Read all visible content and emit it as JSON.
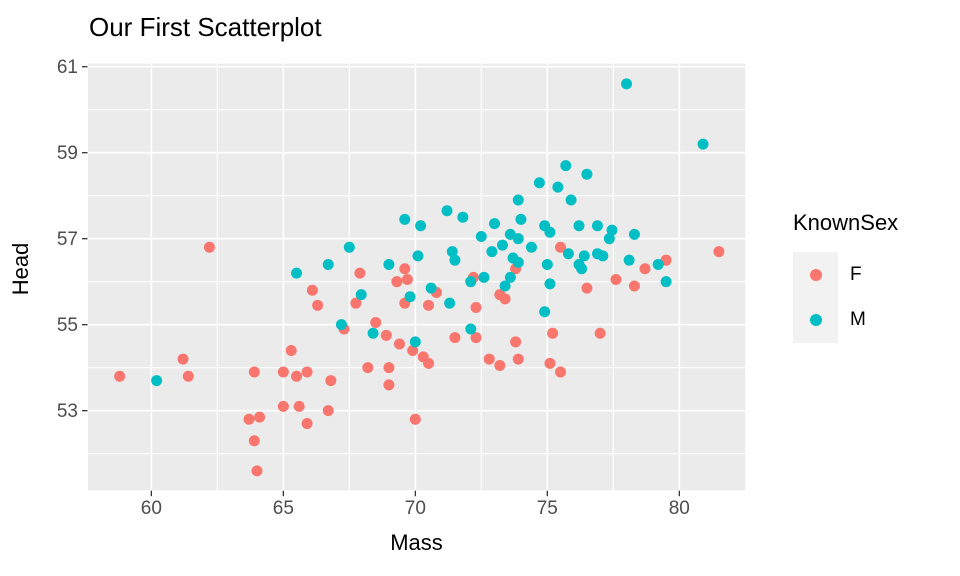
{
  "title": "Our First Scatterplot",
  "chart_data": {
    "type": "scatter",
    "title": "Our First Scatterplot",
    "xlabel": "Mass",
    "ylabel": "Head",
    "xlim": [
      57.6,
      82.5
    ],
    "ylim": [
      51.15,
      61.07
    ],
    "x_ticks": [
      "60",
      "65",
      "70",
      "75",
      "80"
    ],
    "y_ticks": [
      "53",
      "55",
      "57",
      "59",
      "61"
    ],
    "x_tick_values": [
      60,
      65,
      70,
      75,
      80
    ],
    "y_tick_values": [
      53,
      55,
      57,
      59,
      61
    ],
    "x_minor_ticks": [
      62.5,
      67.5,
      72.5,
      77.5
    ],
    "y_minor_ticks": [
      52,
      54,
      56,
      58,
      60
    ],
    "grid": true,
    "panel_bg": "#EBEBEB",
    "grid_color": "#FFFFFF",
    "tick_label_color": "#4D4D4D",
    "tick_mark_color": "#333333",
    "point_radius": 5.5,
    "legend": {
      "title": "KnownSex",
      "position": "right",
      "key_bg": "#F2F2F2",
      "entries": [
        {
          "label": "F",
          "color": "#F8766D"
        },
        {
          "label": "M",
          "color": "#00BFC4"
        }
      ]
    },
    "series": [
      {
        "name": "F",
        "color": "#F8766D",
        "points": [
          [
            58.8,
            53.8
          ],
          [
            61.2,
            54.2
          ],
          [
            61.4,
            53.8
          ],
          [
            62.2,
            56.8
          ],
          [
            63.7,
            52.8
          ],
          [
            63.9,
            53.9
          ],
          [
            63.9,
            52.3
          ],
          [
            64.0,
            51.6
          ],
          [
            64.1,
            52.85
          ],
          [
            65.0,
            53.9
          ],
          [
            65.0,
            53.1
          ],
          [
            65.3,
            54.4
          ],
          [
            65.5,
            53.8
          ],
          [
            65.6,
            53.1
          ],
          [
            65.9,
            53.9
          ],
          [
            65.9,
            52.7
          ],
          [
            66.1,
            55.8
          ],
          [
            66.3,
            55.45
          ],
          [
            66.7,
            53.0
          ],
          [
            66.8,
            53.7
          ],
          [
            67.3,
            54.9
          ],
          [
            67.75,
            55.5
          ],
          [
            67.9,
            56.2
          ],
          [
            68.2,
            54.0
          ],
          [
            68.5,
            55.05
          ],
          [
            68.9,
            54.75
          ],
          [
            69.0,
            54.0
          ],
          [
            69.0,
            53.6
          ],
          [
            69.3,
            56.0
          ],
          [
            69.4,
            54.55
          ],
          [
            69.6,
            56.3
          ],
          [
            69.7,
            56.05
          ],
          [
            69.6,
            55.5
          ],
          [
            69.9,
            54.4
          ],
          [
            70.0,
            52.8
          ],
          [
            70.3,
            54.25
          ],
          [
            70.5,
            55.45
          ],
          [
            70.5,
            54.1
          ],
          [
            70.8,
            55.75
          ],
          [
            71.5,
            54.7
          ],
          [
            72.2,
            56.1
          ],
          [
            72.3,
            55.4
          ],
          [
            72.3,
            54.7
          ],
          [
            72.8,
            54.2
          ],
          [
            73.2,
            55.7
          ],
          [
            73.2,
            54.05
          ],
          [
            73.4,
            55.6
          ],
          [
            73.8,
            56.3
          ],
          [
            73.8,
            54.6
          ],
          [
            73.9,
            54.2
          ],
          [
            75.1,
            54.1
          ],
          [
            75.2,
            54.8
          ],
          [
            75.5,
            53.9
          ],
          [
            75.5,
            56.8
          ],
          [
            76.5,
            55.85
          ],
          [
            77.0,
            54.8
          ],
          [
            77.6,
            56.05
          ],
          [
            78.3,
            55.9
          ],
          [
            78.7,
            56.3
          ],
          [
            79.5,
            56.5
          ],
          [
            81.5,
            56.7
          ]
        ]
      },
      {
        "name": "M",
        "color": "#00BFC4",
        "points": [
          [
            60.2,
            53.7
          ],
          [
            65.5,
            56.2
          ],
          [
            66.7,
            56.4
          ],
          [
            67.5,
            56.8
          ],
          [
            67.2,
            55.0
          ],
          [
            67.95,
            55.7
          ],
          [
            68.4,
            54.8
          ],
          [
            69.0,
            56.4
          ],
          [
            69.6,
            57.45
          ],
          [
            69.8,
            55.65
          ],
          [
            70.0,
            54.6
          ],
          [
            70.1,
            56.6
          ],
          [
            70.2,
            57.3
          ],
          [
            70.6,
            55.85
          ],
          [
            71.2,
            57.65
          ],
          [
            71.3,
            55.5
          ],
          [
            71.4,
            56.7
          ],
          [
            71.5,
            56.5
          ],
          [
            71.8,
            57.5
          ],
          [
            72.1,
            56.0
          ],
          [
            72.1,
            54.9
          ],
          [
            72.5,
            57.05
          ],
          [
            72.6,
            56.1
          ],
          [
            72.9,
            56.7
          ],
          [
            73.0,
            57.35
          ],
          [
            73.3,
            56.85
          ],
          [
            73.4,
            55.9
          ],
          [
            73.6,
            57.1
          ],
          [
            73.6,
            56.1
          ],
          [
            73.7,
            56.55
          ],
          [
            73.9,
            57.9
          ],
          [
            73.9,
            57.0
          ],
          [
            73.9,
            56.45
          ],
          [
            74.0,
            57.45
          ],
          [
            74.4,
            56.8
          ],
          [
            74.7,
            58.3
          ],
          [
            74.9,
            57.3
          ],
          [
            74.9,
            55.3
          ],
          [
            75.0,
            56.4
          ],
          [
            75.1,
            57.15
          ],
          [
            75.1,
            55.95
          ],
          [
            75.4,
            58.2
          ],
          [
            75.7,
            58.7
          ],
          [
            75.8,
            56.65
          ],
          [
            75.9,
            57.9
          ],
          [
            76.2,
            57.3
          ],
          [
            76.2,
            56.4
          ],
          [
            76.3,
            56.3
          ],
          [
            76.4,
            56.6
          ],
          [
            76.5,
            58.5
          ],
          [
            76.9,
            57.3
          ],
          [
            76.9,
            56.65
          ],
          [
            77.1,
            56.6
          ],
          [
            77.35,
            57.0
          ],
          [
            77.45,
            57.2
          ],
          [
            78.0,
            60.6
          ],
          [
            78.1,
            56.5
          ],
          [
            78.3,
            57.1
          ],
          [
            79.2,
            56.4
          ],
          [
            79.5,
            56.0
          ],
          [
            80.9,
            59.2
          ]
        ]
      }
    ]
  }
}
